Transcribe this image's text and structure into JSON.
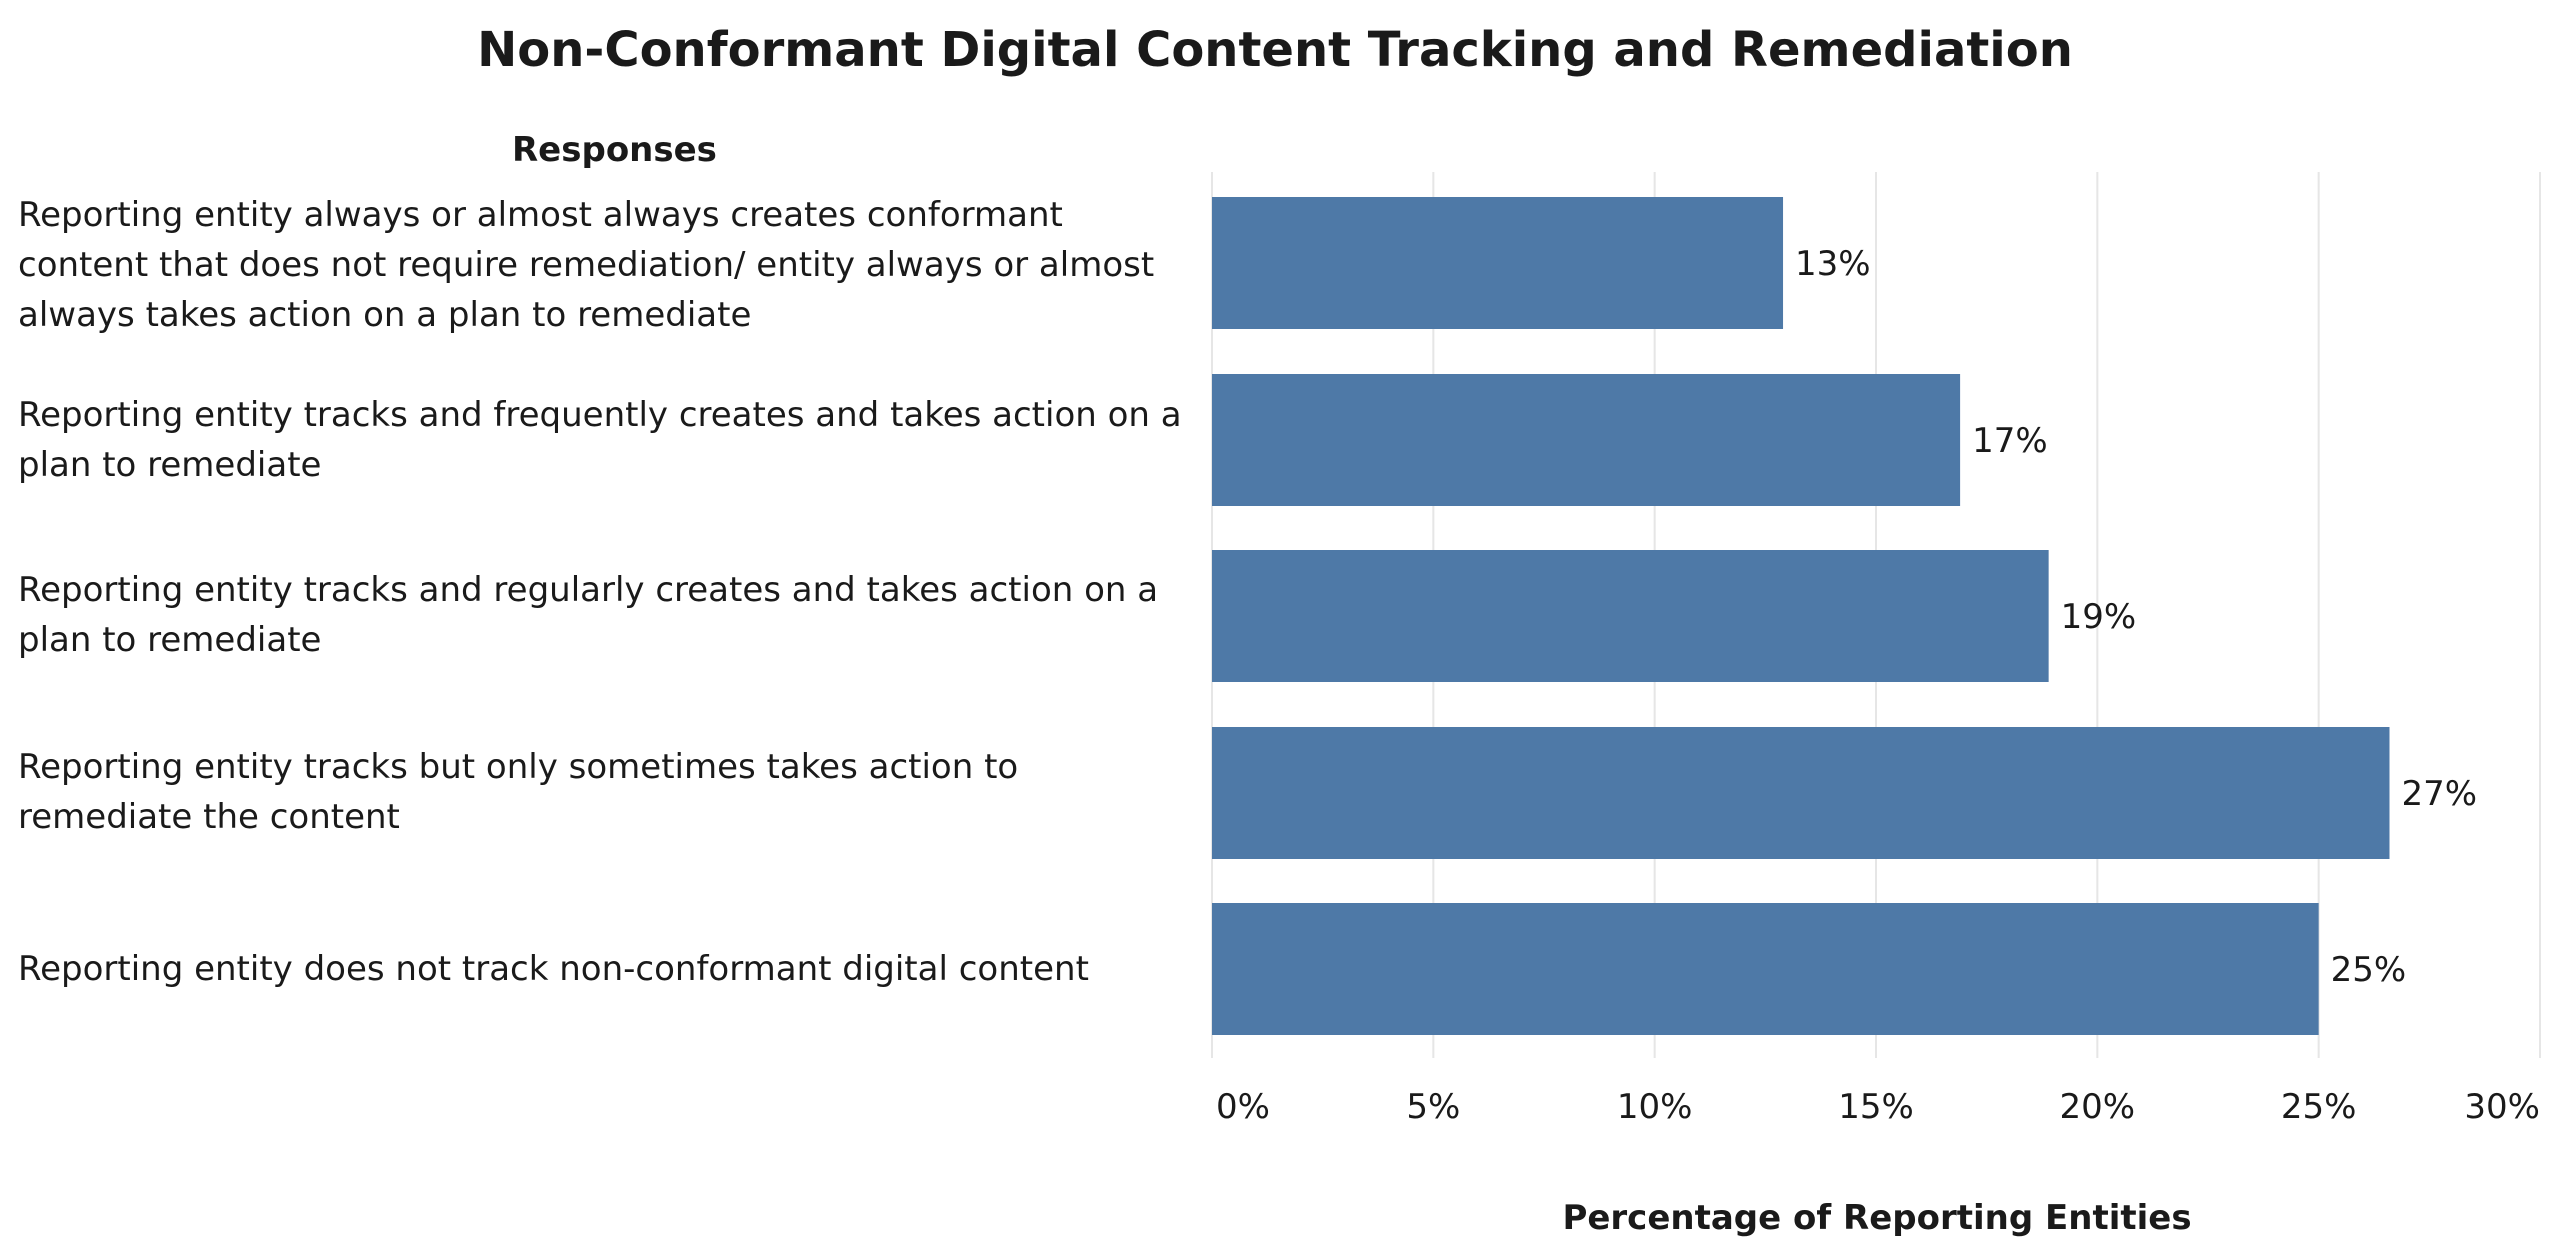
{
  "chart_data": {
    "type": "bar",
    "orientation": "horizontal",
    "title": "Non-Conformant Digital Content Tracking and Remediation",
    "row_header": "Responses",
    "categories": [
      "Reporting entity always or almost always creates conformant content that does not require remediation/ entity always or almost always takes action on a plan to remediate",
      "Reporting entity tracks and frequently creates and takes action on a plan to remediate",
      "Reporting entity tracks and regularly creates and takes action on a plan to remediate",
      "Reporting entity tracks but only sometimes takes action to remediate the content",
      "Reporting entity does not track non-conformant digital content"
    ],
    "values": [
      12.9,
      16.9,
      18.9,
      26.6,
      25.0
    ],
    "data_labels": [
      "13%",
      "17%",
      "19%",
      "27%",
      "25%"
    ],
    "xlabel": "Percentage of Reporting Entities",
    "xlim": [
      0,
      30
    ],
    "xticks": [
      0,
      5,
      10,
      15,
      20,
      25,
      30
    ],
    "xtick_labels": [
      "0%",
      "5%",
      "10%",
      "15%",
      "20%",
      "25%",
      "30%"
    ],
    "grid": "vertical",
    "bar_color": "#4e79a7",
    "grid_color": "#e6e6e6",
    "text_color": "#1a1a1a"
  }
}
